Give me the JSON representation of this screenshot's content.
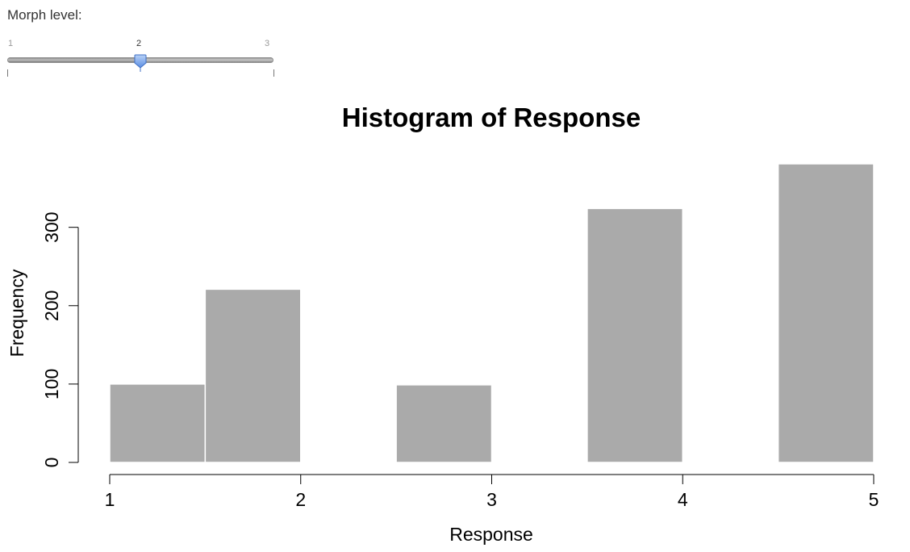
{
  "slider": {
    "label": "Morph level:",
    "min": 1,
    "max": 3,
    "value": 2,
    "ticks": [
      "1",
      "2",
      "3"
    ]
  },
  "chart_data": {
    "type": "bar",
    "title": "Histogram of Response",
    "xlabel": "Response",
    "ylabel": "Frequency",
    "bins": [
      [
        1.0,
        1.5
      ],
      [
        1.5,
        2.0
      ],
      [
        2.0,
        2.5
      ],
      [
        2.5,
        3.0
      ],
      [
        3.0,
        3.5
      ],
      [
        3.5,
        4.0
      ],
      [
        4.0,
        4.5
      ],
      [
        4.5,
        5.0
      ]
    ],
    "values": [
      100,
      221,
      0,
      99,
      0,
      324,
      0,
      381
    ],
    "xlim": [
      1,
      5
    ],
    "ylim": [
      0,
      381
    ],
    "xticks": [
      1,
      2,
      3,
      4,
      5
    ],
    "yticks": [
      0,
      100,
      200,
      300
    ],
    "bar_color": "#aaaaaa",
    "grid": false
  }
}
